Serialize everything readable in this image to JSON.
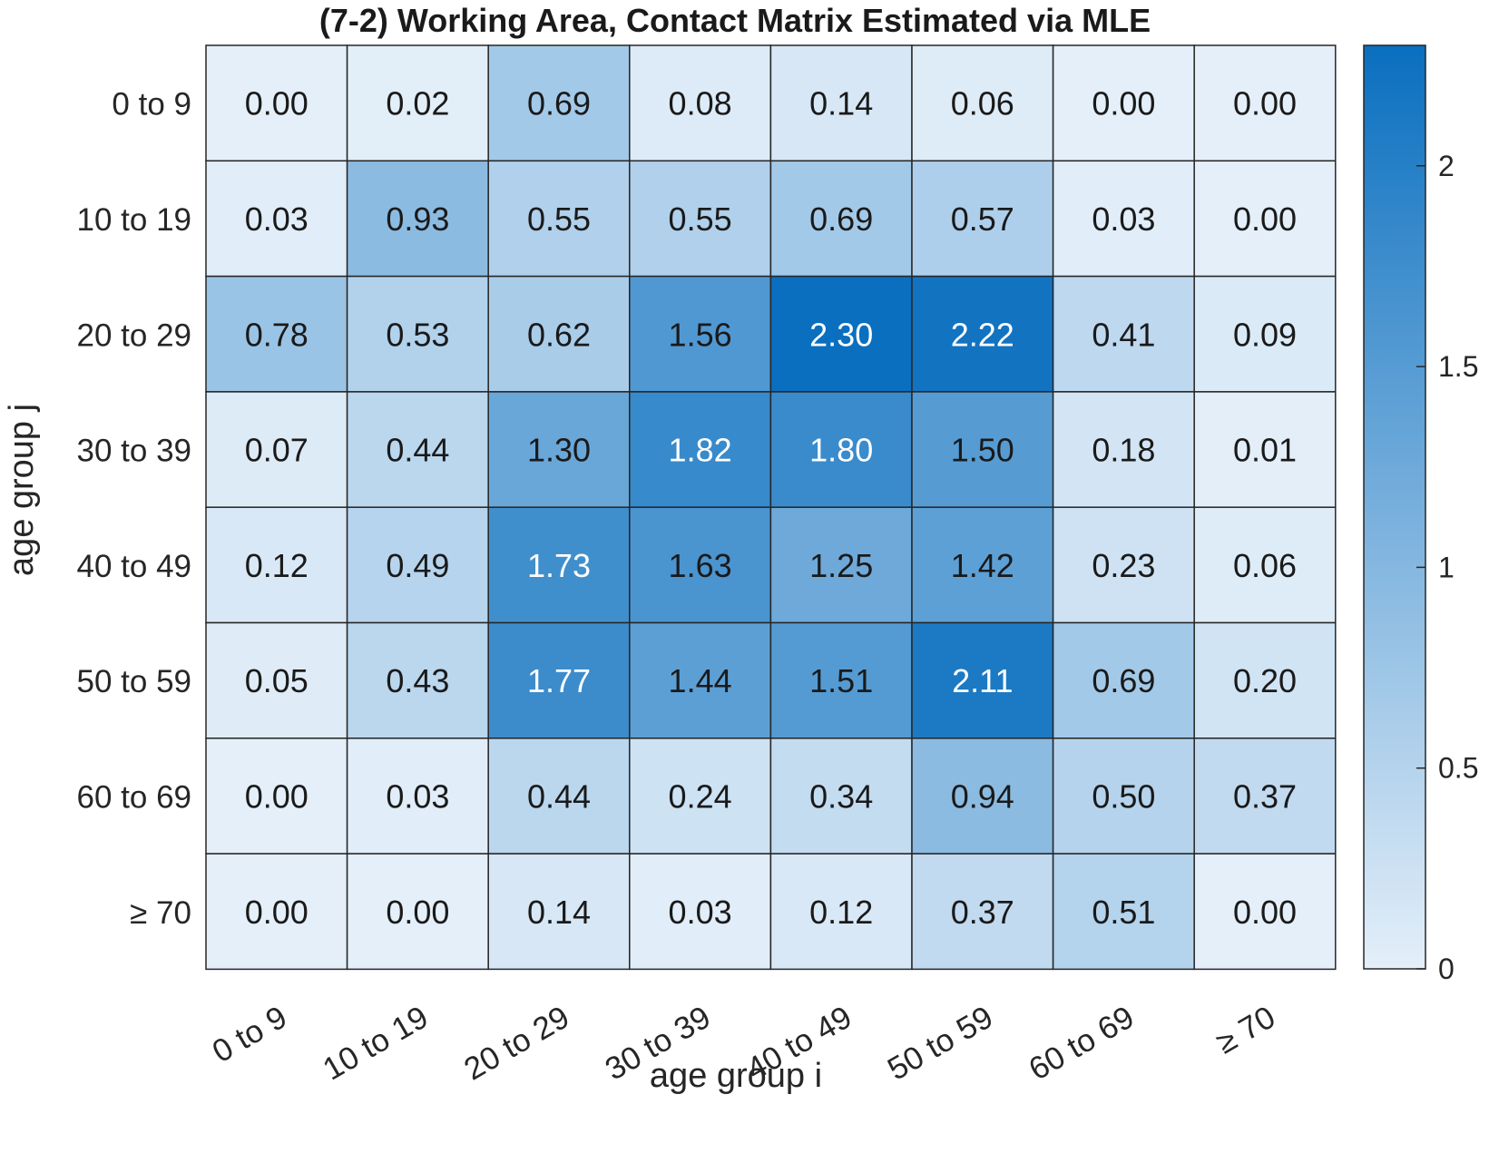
{
  "chart_data": {
    "type": "heatmap",
    "title": "(7-2) Working Area, Contact Matrix Estimated via MLE",
    "xlabel": "age group i",
    "ylabel": "age group j",
    "x_categories": [
      "0 to 9",
      "10 to 19",
      "20 to 29",
      "30 to 39",
      "40 to 49",
      "50 to 59",
      "60 to 69",
      "≥ 70"
    ],
    "y_categories": [
      "0 to 9",
      "10 to 19",
      "20 to 29",
      "30 to 39",
      "40 to 49",
      "50 to 59",
      "60 to 69",
      "≥ 70"
    ],
    "values": [
      [
        0.0,
        0.02,
        0.69,
        0.08,
        0.14,
        0.06,
        0.0,
        0.0
      ],
      [
        0.03,
        0.93,
        0.55,
        0.55,
        0.69,
        0.57,
        0.03,
        0.0
      ],
      [
        0.78,
        0.53,
        0.62,
        1.56,
        2.3,
        2.22,
        0.41,
        0.09
      ],
      [
        0.07,
        0.44,
        1.3,
        1.82,
        1.8,
        1.5,
        0.18,
        0.01
      ],
      [
        0.12,
        0.49,
        1.73,
        1.63,
        1.25,
        1.42,
        0.23,
        0.06
      ],
      [
        0.05,
        0.43,
        1.77,
        1.44,
        1.51,
        2.11,
        0.69,
        0.2
      ],
      [
        0.0,
        0.03,
        0.44,
        0.24,
        0.34,
        0.94,
        0.5,
        0.37
      ],
      [
        0.0,
        0.0,
        0.14,
        0.03,
        0.12,
        0.37,
        0.51,
        0.0
      ]
    ],
    "colorbar": {
      "range": [
        0,
        2.3
      ],
      "ticks": [
        "0",
        "0.5",
        "1",
        "1.5",
        "2"
      ],
      "tick_values": [
        0,
        0.5,
        1,
        1.5,
        2
      ],
      "color_low": "#e4eff9",
      "color_high": "#0a6fbf"
    },
    "text_color_dark": "#1a1a1a",
    "text_color_light": "#ffffff",
    "light_text_threshold": 1.7
  }
}
